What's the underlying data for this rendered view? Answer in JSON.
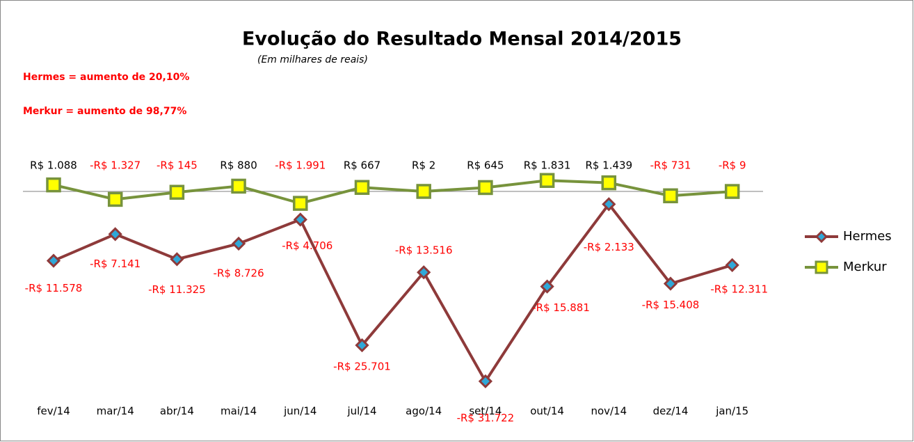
{
  "chart_data": {
    "type": "line",
    "title": "Evolução do Resultado Mensal 2014/2015",
    "subtitle": "(Em milhares de reais)",
    "annotations": [
      "Hermes = aumento  de  20,10%",
      "Merkur =  aumento de 98,77%"
    ],
    "categories": [
      "fev/14",
      "mar/14",
      "abr/14",
      "mai/14",
      "jun/14",
      "jul/14",
      "ago/14",
      "set/14",
      "out/14",
      "nov/14",
      "dez/14",
      "jan/15"
    ],
    "ylim": [
      -36000,
      4000
    ],
    "zero_line": true,
    "legend": "right",
    "series": [
      {
        "name": "Hermes",
        "color": "#8e3a3a",
        "marker_color": "#2fa8d8",
        "values": [
          -11578,
          -7141,
          -11325,
          -8726,
          -4706,
          -25701,
          -13516,
          -31722,
          -15881,
          -2133,
          -15408,
          -12311
        ],
        "value_labels": [
          "-R$ 11.578",
          "-R$ 7.141",
          "-R$ 11.325",
          "-R$ 8.726",
          "-R$ 4.706",
          "-R$ 25.701",
          "-R$ 13.516",
          "-R$ 31.722",
          "-R$ 15.881",
          "-R$ 2.133",
          "-R$ 15.408",
          "-R$ 12.311"
        ]
      },
      {
        "name": "Merkur",
        "color": "#77933c",
        "marker_color": "#ffff00",
        "values": [
          1088,
          -1327,
          -145,
          880,
          -1991,
          667,
          2,
          645,
          1831,
          1439,
          -731,
          -9
        ],
        "value_labels": [
          "R$ 1.088",
          "-R$ 1.327",
          "-R$ 145",
          "R$ 880",
          "-R$ 1.991",
          "R$ 667",
          "R$ 2",
          "R$ 645",
          "R$ 1.831",
          "R$ 1.439",
          "-R$ 731",
          "-R$ 9"
        ]
      }
    ]
  }
}
